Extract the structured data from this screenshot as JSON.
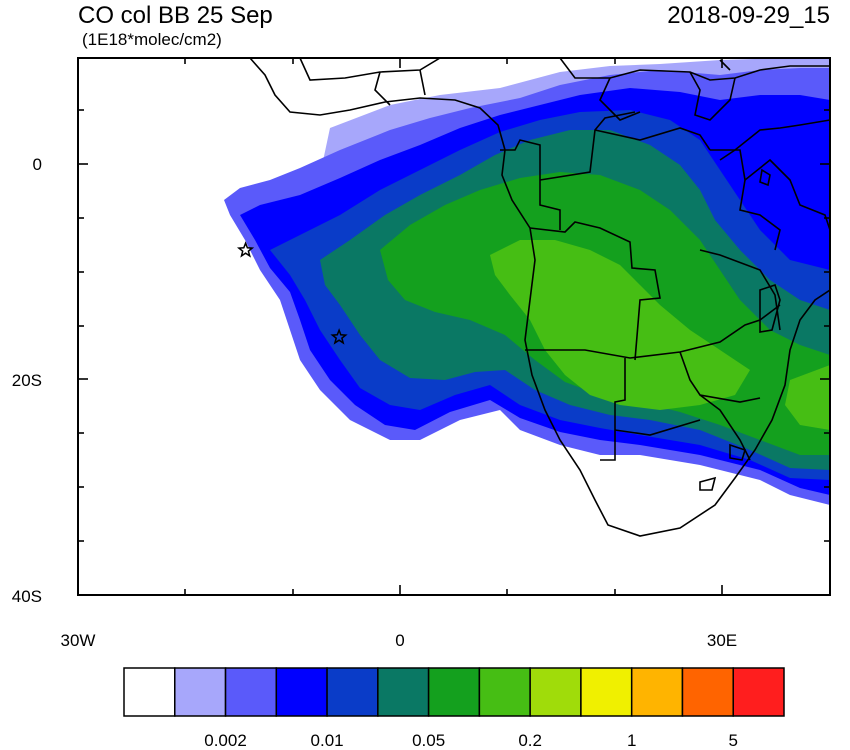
{
  "header": {
    "title": "CO col BB 25 Sep",
    "units": "(1E18*molec/cm2)",
    "datetime": "2018-09-29_15"
  },
  "map": {
    "lon_range": [
      -30,
      40
    ],
    "lat_range": [
      -40,
      10
    ],
    "y_tick_labels": [
      "0",
      "20S",
      "40S"
    ],
    "x_tick_labels": [
      "30W",
      "0",
      "30E"
    ],
    "markers": [
      {
        "name": "star",
        "lon": -14.4,
        "lat": -7.9
      },
      {
        "name": "star",
        "lon": -5.7,
        "lat": -16.0
      }
    ]
  },
  "colorbar": {
    "colors": [
      "#ffffff",
      "#a7a7fb",
      "#5a5afa",
      "#0000ff",
      "#0a3cc8",
      "#0a7864",
      "#14a01e",
      "#46be14",
      "#a0dc0a",
      "#f0f000",
      "#ffb400",
      "#ff6400",
      "#ff1e1e"
    ],
    "labels": [
      "0.002",
      "0.01",
      "0.05",
      "0.2",
      "1",
      "5"
    ]
  }
}
